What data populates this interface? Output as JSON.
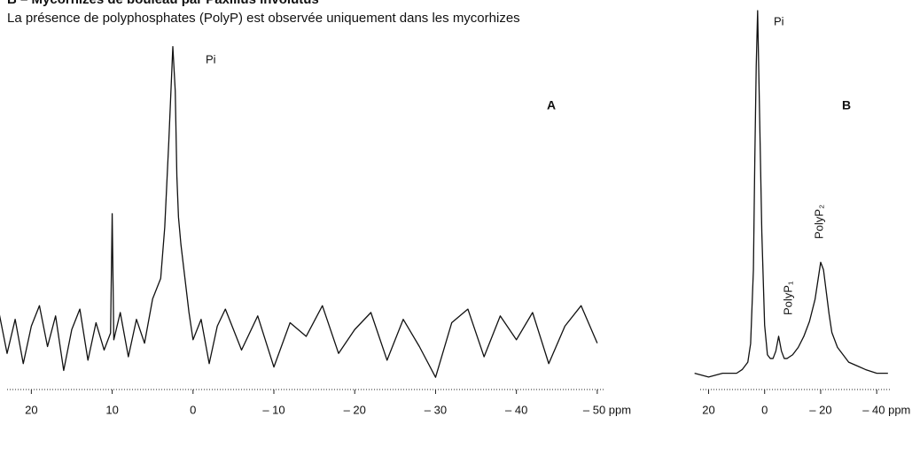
{
  "header": {
    "title": "B – Mycorhizes de bouleau par Paxillus involutus",
    "subtitle": "La présence de polyphosphates (PolyP) est observée uniquement dans les mycorhizes"
  },
  "chart_data": [
    {
      "type": "line",
      "panel_label": "A",
      "annotations": [
        "Pi"
      ],
      "x": [
        25,
        24,
        23,
        22,
        21,
        20,
        19,
        18,
        17,
        16,
        15,
        14,
        13,
        12,
        11,
        10.2,
        10,
        9.8,
        9,
        8,
        7,
        6,
        5,
        4,
        3.5,
        3,
        2.5,
        2.2,
        2,
        1.8,
        1.5,
        1,
        0.5,
        0,
        -1,
        -2,
        -3,
        -4,
        -6,
        -8,
        -10,
        -12,
        -14,
        -16,
        -18,
        -20,
        -22,
        -24,
        -26,
        -28,
        -30,
        -32,
        -34,
        -36,
        -38,
        -40,
        -42,
        -44,
        -46,
        -48,
        -50
      ],
      "series": [
        {
          "color": "#111111",
          "values": [
            12,
            20,
            8,
            18,
            5,
            16,
            22,
            10,
            19,
            3,
            15,
            21,
            6,
            17,
            9,
            14,
            49,
            12,
            20,
            7,
            18,
            11,
            24,
            30,
            45,
            70,
            98,
            85,
            60,
            48,
            40,
            30,
            20,
            12,
            18,
            5,
            16,
            21,
            9,
            19,
            4,
            17,
            13,
            22,
            8,
            15,
            20,
            6,
            18,
            10,
            1,
            17,
            21,
            7,
            19,
            12,
            20,
            5,
            16,
            22,
            11
          ]
        }
      ],
      "xlim": [
        23,
        -51
      ],
      "ylim": [
        0,
        100
      ],
      "xticks": [
        20,
        10,
        0,
        {
          "value": -10,
          "label": "– 10"
        },
        {
          "value": -20,
          "label": "– 20"
        },
        {
          "value": -30,
          "label": "– 30"
        },
        {
          "value": -40,
          "label": "– 40"
        },
        {
          "value": -50,
          "label": "– 50 ppm"
        }
      ]
    },
    {
      "type": "line",
      "panel_label": "B",
      "annotations": [
        "Pi",
        "PolyP₁",
        "PolyP₂"
      ],
      "x": [
        25,
        20,
        15,
        10,
        8,
        6,
        5,
        4,
        3.5,
        3,
        2.5,
        2,
        1,
        0,
        -1,
        -2,
        -3,
        -4,
        -5,
        -6,
        -7,
        -8,
        -10,
        -12,
        -14,
        -16,
        -18,
        -19,
        -20,
        -21,
        -22,
        -23,
        -24,
        -26,
        -28,
        -30,
        -33,
        -36,
        -40,
        -44
      ],
      "series": [
        {
          "color": "#111111",
          "values": [
            2,
            1,
            2,
            2,
            3,
            5,
            10,
            30,
            60,
            85,
            100,
            80,
            40,
            15,
            7,
            6,
            6,
            8,
            12,
            8,
            6,
            6,
            7,
            9,
            12,
            16,
            22,
            27,
            32,
            30,
            24,
            18,
            13,
            9,
            7,
            5,
            4,
            3,
            2,
            2
          ]
        }
      ],
      "xlim": [
        23,
        -45
      ],
      "ylim": [
        0,
        100
      ],
      "xticks": [
        20,
        0,
        {
          "value": -20,
          "label": "– 20"
        },
        {
          "value": -40,
          "label": "– 40 ppm"
        }
      ]
    }
  ]
}
